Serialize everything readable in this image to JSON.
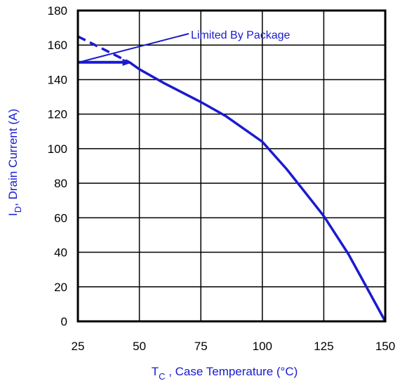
{
  "chart_data": {
    "type": "line",
    "xlim": [
      25,
      150
    ],
    "ylim": [
      0,
      180
    ],
    "x_ticks": [
      25,
      50,
      75,
      100,
      125,
      150
    ],
    "y_ticks": [
      0,
      20,
      40,
      60,
      80,
      100,
      120,
      140,
      160,
      180
    ],
    "grid": true,
    "xlabel": {
      "main": "T",
      "sub": "C",
      "rest": " , Case Temperature (°C)"
    },
    "ylabel": {
      "main": "I",
      "sub": "D",
      "rest": ",  Drain Current (A)"
    },
    "annotation": "Limited By Package",
    "colors": {
      "series": "#1a1ad0",
      "axes": "#000000"
    },
    "series": [
      {
        "style": "solid",
        "points": [
          [
            46,
            150
          ],
          [
            50,
            146
          ],
          [
            60,
            138
          ],
          [
            75,
            127
          ],
          [
            85,
            119
          ],
          [
            100,
            104
          ],
          [
            110,
            88
          ],
          [
            115,
            79
          ],
          [
            120,
            70
          ],
          [
            125,
            61
          ],
          [
            130,
            50
          ],
          [
            135,
            39
          ],
          [
            140,
            26
          ],
          [
            145,
            13
          ],
          [
            150,
            0
          ]
        ]
      },
      {
        "style": "dashed",
        "points": [
          [
            25,
            165
          ],
          [
            46,
            150
          ]
        ]
      },
      {
        "style": "solid-thick",
        "points": [
          [
            25,
            150
          ],
          [
            46,
            150
          ]
        ]
      }
    ]
  }
}
